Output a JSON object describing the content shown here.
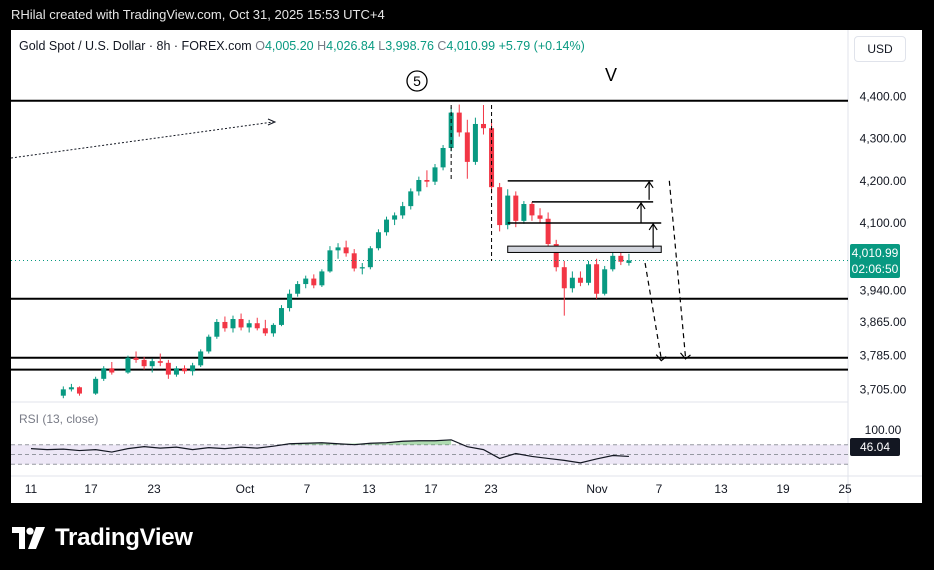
{
  "header": {
    "text": "RHilal created with TradingView.com, Oct 31, 2025 15:53 UTC+4"
  },
  "legend": {
    "symbol": "Gold Spot / U.S. Dollar · 8h · FOREX.com",
    "o_label": "O",
    "o": "4,005.20",
    "h_label": "H",
    "h": "4,026.84",
    "l_label": "L",
    "l": "3,998.76",
    "c_label": "C",
    "c": "4,010.99",
    "change": "+5.79 (+0.14%)"
  },
  "currency_button": "USD",
  "last_price": {
    "price": "4,010.99",
    "countdown": "02:06:50"
  },
  "rsi": {
    "legend": "RSI (13, close)",
    "value_label": "46.04",
    "value": 46.04
  },
  "annotations": {
    "wave_5": "5",
    "wave_v": "V"
  },
  "footer": {
    "brand": "TradingView"
  },
  "colors": {
    "up": "#089981",
    "down": "#f23645",
    "rsi_line": "#131722",
    "rsi_band": "#ede7f6",
    "rsi_overbought_fill": "#4caf50",
    "background": "#ffffff"
  },
  "chart_data": [
    {
      "type": "candlestick",
      "title": "Gold Spot / U.S. Dollar · 8h · FOREX.com",
      "x_ticks": [
        "11",
        "17",
        "23",
        "Oct",
        "7",
        "13",
        "17",
        "23",
        "Nov",
        "7",
        "13",
        "19",
        "25"
      ],
      "y_ticks": [
        "4,400.00",
        "4,300.00",
        "4,200.00",
        "4,100.00",
        "3,940.00",
        "3,865.00",
        "3,785.00",
        "3,705.00"
      ],
      "y_tick_values": [
        4400,
        4300,
        4200,
        4100,
        3940,
        3865,
        3785,
        3705
      ],
      "y_range": [
        3675,
        4475
      ],
      "candles": [
        [
          4,
          3690,
          3712,
          3684,
          3705
        ],
        [
          5,
          3705,
          3718,
          3700,
          3710
        ],
        [
          6,
          3710,
          3712,
          3690,
          3695
        ],
        [
          8,
          3695,
          3735,
          3692,
          3730
        ],
        [
          9,
          3730,
          3760,
          3725,
          3755
        ],
        [
          10,
          3755,
          3770,
          3740,
          3745
        ],
        [
          12,
          3745,
          3785,
          3742,
          3780
        ],
        [
          13,
          3780,
          3795,
          3768,
          3775
        ],
        [
          14,
          3775,
          3782,
          3752,
          3760
        ],
        [
          15,
          3760,
          3778,
          3745,
          3772
        ],
        [
          16,
          3772,
          3790,
          3760,
          3768
        ],
        [
          17,
          3768,
          3775,
          3730,
          3740
        ],
        [
          18,
          3740,
          3760,
          3735,
          3755
        ],
        [
          19,
          3755,
          3762,
          3742,
          3748
        ],
        [
          20,
          3748,
          3768,
          3738,
          3762
        ],
        [
          21,
          3762,
          3800,
          3758,
          3795
        ],
        [
          22,
          3795,
          3835,
          3790,
          3830
        ],
        [
          23,
          3830,
          3872,
          3825,
          3865
        ],
        [
          24,
          3865,
          3878,
          3842,
          3850
        ],
        [
          25,
          3850,
          3880,
          3840,
          3872
        ],
        [
          26,
          3872,
          3885,
          3845,
          3852
        ],
        [
          27,
          3852,
          3870,
          3840,
          3862
        ],
        [
          28,
          3862,
          3875,
          3845,
          3850
        ],
        [
          29,
          3850,
          3870,
          3832,
          3838
        ],
        [
          30,
          3838,
          3862,
          3830,
          3858
        ],
        [
          31,
          3858,
          3905,
          3855,
          3898
        ],
        [
          32,
          3898,
          3942,
          3890,
          3932
        ],
        [
          33,
          3932,
          3962,
          3925,
          3955
        ],
        [
          34,
          3955,
          3975,
          3945,
          3968
        ],
        [
          35,
          3968,
          3978,
          3945,
          3952
        ],
        [
          36,
          3952,
          3990,
          3948,
          3985
        ],
        [
          37,
          3985,
          4045,
          3982,
          4035
        ],
        [
          38,
          4035,
          4052,
          4015,
          4042
        ],
        [
          39,
          4042,
          4058,
          4020,
          4028
        ],
        [
          40,
          4028,
          4038,
          3985,
          3992
        ],
        [
          41,
          3992,
          4005,
          3978,
          3995
        ],
        [
          42,
          3995,
          4045,
          3990,
          4040
        ],
        [
          43,
          4040,
          4085,
          4035,
          4078
        ],
        [
          44,
          4078,
          4115,
          4070,
          4108
        ],
        [
          45,
          4108,
          4125,
          4095,
          4118
        ],
        [
          46,
          4118,
          4150,
          4110,
          4140
        ],
        [
          47,
          4140,
          4182,
          4132,
          4175
        ],
        [
          48,
          4175,
          4210,
          4165,
          4202
        ],
        [
          49,
          4202,
          4225,
          4185,
          4198
        ],
        [
          50,
          4198,
          4240,
          4190,
          4232
        ],
        [
          51,
          4232,
          4285,
          4225,
          4278
        ],
        [
          52,
          4278,
          4375,
          4270,
          4362
        ],
        [
          53,
          4362,
          4381,
          4305,
          4315
        ],
        [
          54,
          4315,
          4345,
          4205,
          4245
        ],
        [
          55,
          4245,
          4350,
          4238,
          4335
        ],
        [
          56,
          4335,
          4380,
          4310,
          4325
        ],
        [
          57,
          4325,
          4340,
          4170,
          4185
        ],
        [
          58,
          4185,
          4195,
          4080,
          4095
        ],
        [
          59,
          4095,
          4180,
          4085,
          4165
        ],
        [
          60,
          4165,
          4175,
          4090,
          4105
        ],
        [
          61,
          4105,
          4152,
          4098,
          4145
        ],
        [
          62,
          4145,
          4150,
          4105,
          4118
        ],
        [
          63,
          4118,
          4135,
          4100,
          4110
        ],
        [
          64,
          4110,
          4125,
          4040,
          4050
        ],
        [
          65,
          4050,
          4060,
          3985,
          3995
        ],
        [
          66,
          3995,
          4010,
          3880,
          3945
        ],
        [
          67,
          3945,
          3985,
          3935,
          3970
        ],
        [
          68,
          3970,
          3985,
          3950,
          3958
        ],
        [
          69,
          3958,
          4010,
          3952,
          4002
        ],
        [
          70,
          4002,
          4015,
          3920,
          3932
        ],
        [
          71,
          3932,
          3998,
          3928,
          3990
        ],
        [
          72,
          3990,
          4030,
          3985,
          4022
        ],
        [
          73,
          4022,
          4040,
          4000,
          4008
        ],
        [
          74,
          4005.2,
          4026.84,
          3998.76,
          4010.99
        ]
      ],
      "horizontal_levels": [
        4390,
        3920,
        3780,
        3752
      ],
      "arrow_lines": [
        {
          "from": [
            59,
            4200
          ],
          "to": [
            77,
            4200
          ]
        },
        {
          "from": [
            62,
            4150
          ],
          "to": [
            77,
            4150
          ]
        },
        {
          "from": [
            59,
            4100
          ],
          "to": [
            78,
            4100
          ]
        },
        {
          "from": [
            59,
            4038
          ],
          "to": [
            78,
            4038
          ]
        }
      ]
    },
    {
      "type": "line",
      "title": "RSI (13, close)",
      "y_ticks": [
        "100.00"
      ],
      "levels": [
        70,
        50,
        30
      ],
      "values": [
        [
          0,
          62
        ],
        [
          2,
          60
        ],
        [
          4,
          61
        ],
        [
          6,
          58
        ],
        [
          8,
          60
        ],
        [
          10,
          55
        ],
        [
          12,
          62
        ],
        [
          14,
          66
        ],
        [
          16,
          63
        ],
        [
          18,
          65
        ],
        [
          20,
          60
        ],
        [
          22,
          64
        ],
        [
          24,
          62
        ],
        [
          26,
          65
        ],
        [
          28,
          63
        ],
        [
          30,
          67
        ],
        [
          32,
          72
        ],
        [
          34,
          73
        ],
        [
          36,
          74
        ],
        [
          38,
          72
        ],
        [
          40,
          70
        ],
        [
          42,
          73
        ],
        [
          44,
          74
        ],
        [
          46,
          77
        ],
        [
          48,
          78
        ],
        [
          50,
          78
        ],
        [
          52,
          80
        ],
        [
          54,
          66
        ],
        [
          56,
          60
        ],
        [
          58,
          42
        ],
        [
          60,
          52
        ],
        [
          62,
          46
        ],
        [
          64,
          42
        ],
        [
          66,
          38
        ],
        [
          68,
          33
        ],
        [
          70,
          41
        ],
        [
          72,
          48
        ],
        [
          74,
          46.04
        ]
      ]
    }
  ]
}
